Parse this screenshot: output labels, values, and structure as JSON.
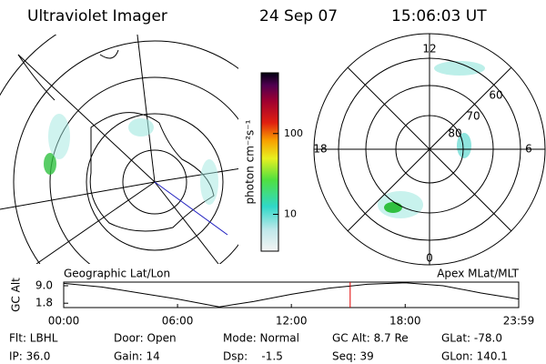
{
  "header": {
    "title": "Ultraviolet Imager",
    "date": "24 Sep 07",
    "time": "15:06:03 UT"
  },
  "colorbar": {
    "label": "photon cm⁻²s⁻¹",
    "log": true,
    "ylim": [
      3.5,
      565
    ],
    "yticks": [
      10,
      100
    ]
  },
  "left_map": {
    "label": "Geographic Lat/Lon"
  },
  "right_map": {
    "label": "Apex MLat/MLT",
    "mlt_labels": [
      12,
      18,
      6,
      0
    ],
    "lat_labels": [
      60,
      70,
      80
    ]
  },
  "alt_chart": {
    "ylabel": "GC Alt",
    "x": [
      0,
      2,
      4,
      6,
      8.2,
      10,
      12,
      14,
      16,
      18,
      20,
      22,
      23.983
    ],
    "values": [
      10,
      8.5,
      6,
      3.5,
      0.3,
      2.5,
      5.5,
      8,
      9.6,
      10.2,
      9,
      6,
      3.5
    ],
    "xlim": [
      0,
      23.983
    ],
    "ylim": [
      0,
      10.5
    ],
    "xticks": [
      {
        "value": 0,
        "label": "00:00"
      },
      {
        "value": 6,
        "label": "06:00"
      },
      {
        "value": 12,
        "label": "12:00"
      },
      {
        "value": 18,
        "label": "18:00"
      },
      {
        "value": 23.983,
        "label": "23:59"
      }
    ],
    "yticks": [
      1.8,
      {
        "value": 9,
        "label": "9.0"
      }
    ],
    "current_time": 15.1
  },
  "info": [
    [
      "Flt: LBHL",
      "Door: Open",
      "Mode: Normal",
      "GC Alt: 8.7 Re",
      "GLat: -78.0"
    ],
    [
      "IP: 36.0",
      "Gain: 14",
      "Dsp:    -1.5",
      "Seq: 39",
      "GLon: 140.1"
    ]
  ]
}
